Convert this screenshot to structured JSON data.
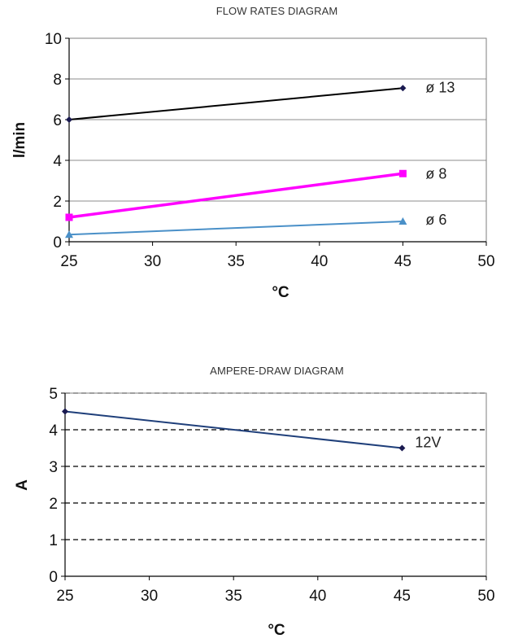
{
  "chart_data": [
    {
      "type": "line",
      "title": "FLOW RATES DIAGRAM",
      "xlabel": "°C",
      "ylabel": "l/min",
      "xlim": [
        25,
        50
      ],
      "ylim": [
        0,
        10
      ],
      "xticks": [
        "25",
        "30",
        "35",
        "40",
        "45",
        "50"
      ],
      "yticks": [
        "0",
        "2",
        "4",
        "6",
        "8",
        "10"
      ],
      "grid": "horizontal solid",
      "series": [
        {
          "name": "ø 13",
          "color": "#000000",
          "marker_color": "#1a1a50",
          "marker": "diamond",
          "x": [
            25,
            45
          ],
          "y": [
            6.0,
            7.55
          ]
        },
        {
          "name": "ø 8",
          "color": "#ff00ff",
          "marker_color": "#ff00ff",
          "marker": "square",
          "x": [
            25,
            45
          ],
          "y": [
            1.2,
            3.35
          ]
        },
        {
          "name": "ø 6",
          "color": "#4a90c8",
          "marker_color": "#4a90c8",
          "marker": "triangle",
          "x": [
            25,
            45
          ],
          "y": [
            0.35,
            1.0
          ]
        }
      ]
    },
    {
      "type": "line",
      "title": "AMPERE-DRAW DIAGRAM",
      "xlabel": "°C",
      "ylabel": "A",
      "xlim": [
        25,
        50
      ],
      "ylim": [
        0,
        5
      ],
      "xticks": [
        "25",
        "30",
        "35",
        "40",
        "45",
        "50"
      ],
      "yticks": [
        "0",
        "1",
        "2",
        "3",
        "4",
        "5"
      ],
      "grid": "horizontal dashed",
      "series": [
        {
          "name": "12V",
          "color": "#1f3f7a",
          "marker_color": "#1a1a50",
          "marker": "diamond",
          "x": [
            25,
            45
          ],
          "y": [
            4.5,
            3.5
          ]
        }
      ]
    }
  ]
}
